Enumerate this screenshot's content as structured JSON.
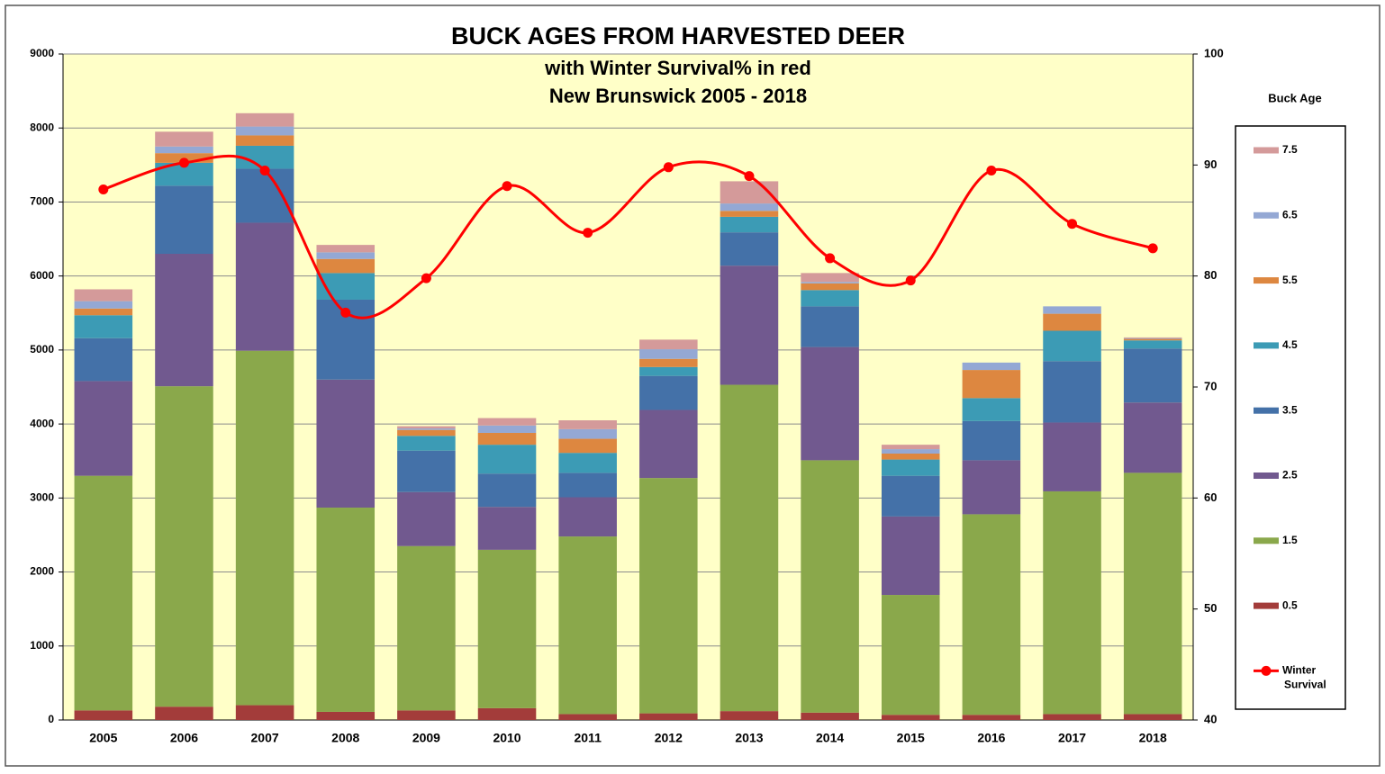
{
  "chart_data": {
    "type": "bar",
    "title": "BUCK AGES FROM HARVESTED DEER",
    "subtitle": [
      "with Winter Survival% in red",
      "New Brunswick 2005 - 2018"
    ],
    "legend_title": "Buck Age",
    "stacked": true,
    "grid": true,
    "legend": "right",
    "categories": [
      "2005",
      "2006",
      "2007",
      "2008",
      "2009",
      "2010",
      "2011",
      "2012",
      "2013",
      "2014",
      "2015",
      "2016",
      "2017",
      "2018"
    ],
    "series": [
      {
        "name": "0.5",
        "color": "#a33c3a",
        "values": [
          130,
          180,
          200,
          110,
          130,
          160,
          80,
          90,
          120,
          100,
          70,
          70,
          80,
          80
        ]
      },
      {
        "name": "1.5",
        "color": "#8aa84b",
        "values": [
          3170,
          4330,
          4790,
          2760,
          2220,
          2140,
          2400,
          3180,
          4410,
          3410,
          1620,
          2710,
          3010,
          3260
        ]
      },
      {
        "name": "2.5",
        "color": "#71598f",
        "values": [
          1280,
          1790,
          1730,
          1730,
          730,
          580,
          530,
          920,
          1610,
          1530,
          1060,
          730,
          930,
          950
        ]
      },
      {
        "name": "3.5",
        "color": "#4471a8",
        "values": [
          580,
          920,
          730,
          1080,
          560,
          450,
          330,
          460,
          450,
          550,
          550,
          530,
          830,
          730
        ]
      },
      {
        "name": "4.5",
        "color": "#3c9bb5",
        "values": [
          310,
          310,
          310,
          360,
          200,
          390,
          270,
          120,
          210,
          220,
          220,
          310,
          410,
          110
        ]
      },
      {
        "name": "5.5",
        "color": "#dd8740",
        "values": [
          90,
          130,
          140,
          190,
          80,
          160,
          190,
          110,
          80,
          90,
          80,
          380,
          230,
          20
        ]
      },
      {
        "name": "6.5",
        "color": "#94a8d4",
        "values": [
          100,
          90,
          120,
          90,
          20,
          100,
          130,
          130,
          100,
          20,
          60,
          100,
          100,
          10
        ]
      },
      {
        "name": "7.5",
        "color": "#d49a9a",
        "values": [
          160,
          200,
          180,
          100,
          30,
          100,
          120,
          130,
          300,
          120,
          60,
          0,
          0,
          10
        ]
      },
      {
        "name": "Winter Survival",
        "type": "line",
        "axis": "y2",
        "color": "#ff0000",
        "values": [
          87.8,
          90.2,
          89.5,
          76.7,
          79.8,
          88.1,
          83.9,
          89.8,
          89.0,
          81.6,
          79.6,
          89.5,
          84.7,
          82.5
        ]
      }
    ],
    "ylim": [
      0,
      9000
    ],
    "yticks": [
      0,
      1000,
      2000,
      3000,
      4000,
      5000,
      6000,
      7000,
      8000,
      9000
    ],
    "y2lim": [
      40,
      100
    ],
    "y2ticks": [
      40,
      50,
      60,
      70,
      80,
      90,
      100
    ]
  }
}
